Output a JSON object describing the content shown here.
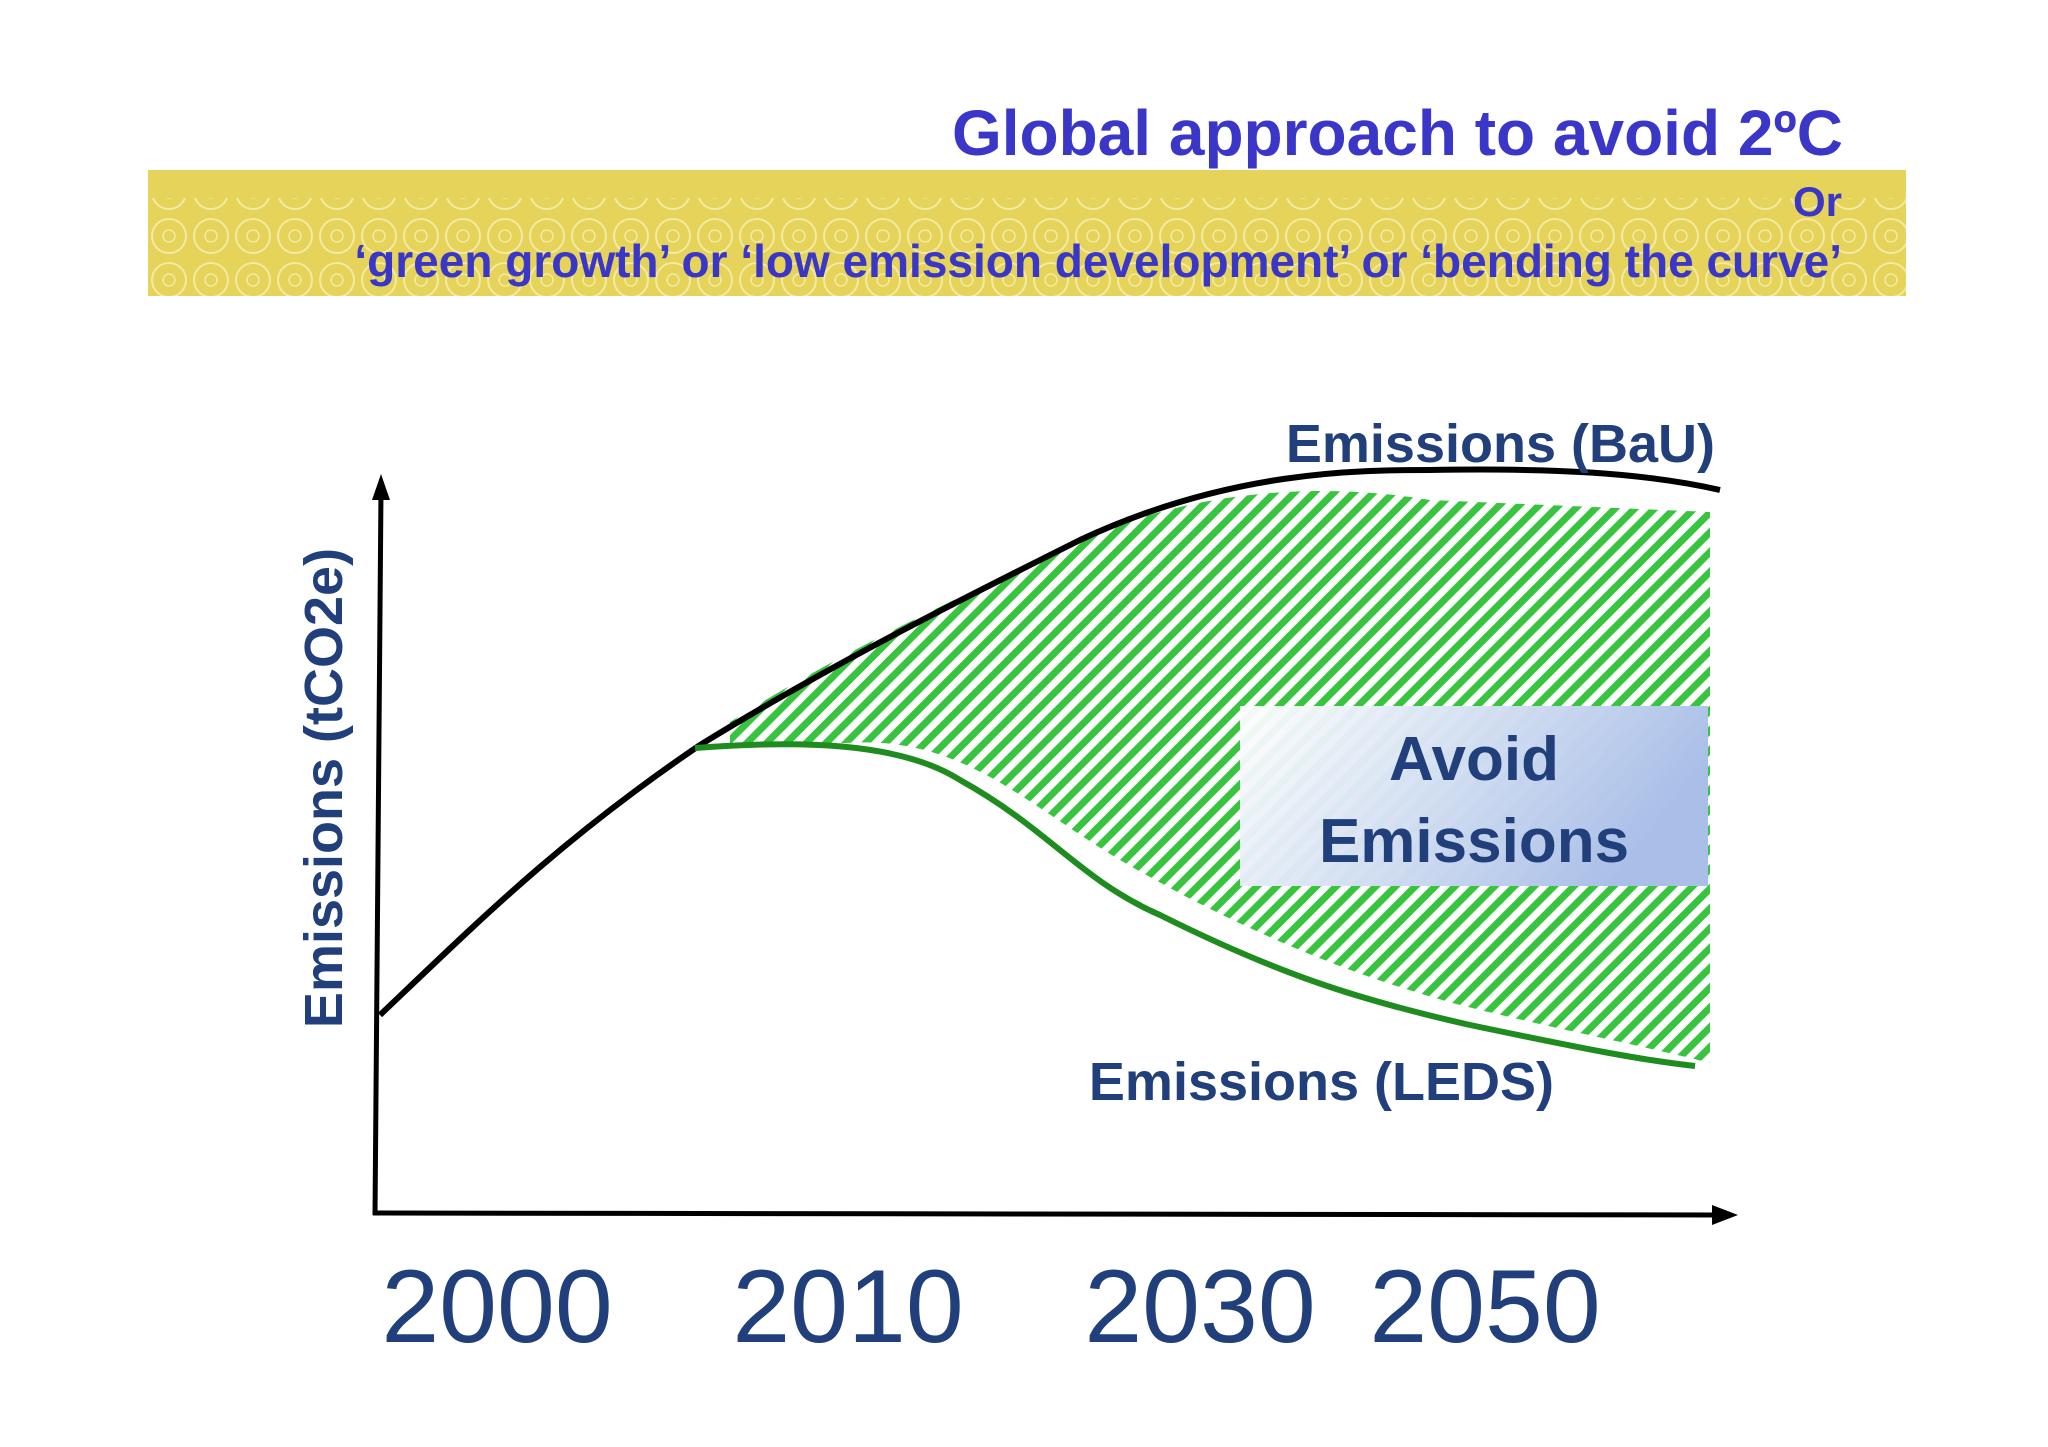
{
  "slide": {
    "title": "Global approach to avoid 2ºC",
    "banner_or": "Or",
    "banner_subtitle": "‘green growth’ or ‘low emission development’ or ‘bending the curve’"
  },
  "diagram": {
    "y_axis_label": "Emissions (tCO2e)",
    "x_ticks": [
      "2000",
      "2010",
      "2030",
      "2050"
    ],
    "bau_label": "Emissions (BaU)",
    "leds_label": "Emissions (LEDS)",
    "avoid_label_line1": "Avoid",
    "avoid_label_line2": "Emissions",
    "colors": {
      "bau_line": "#000000",
      "leds_line": "#1e8c1e",
      "hatch": "#39c43f",
      "label_text": "#213f7a",
      "title_text": "#3a36c8",
      "banner": "#e5d35a"
    }
  }
}
